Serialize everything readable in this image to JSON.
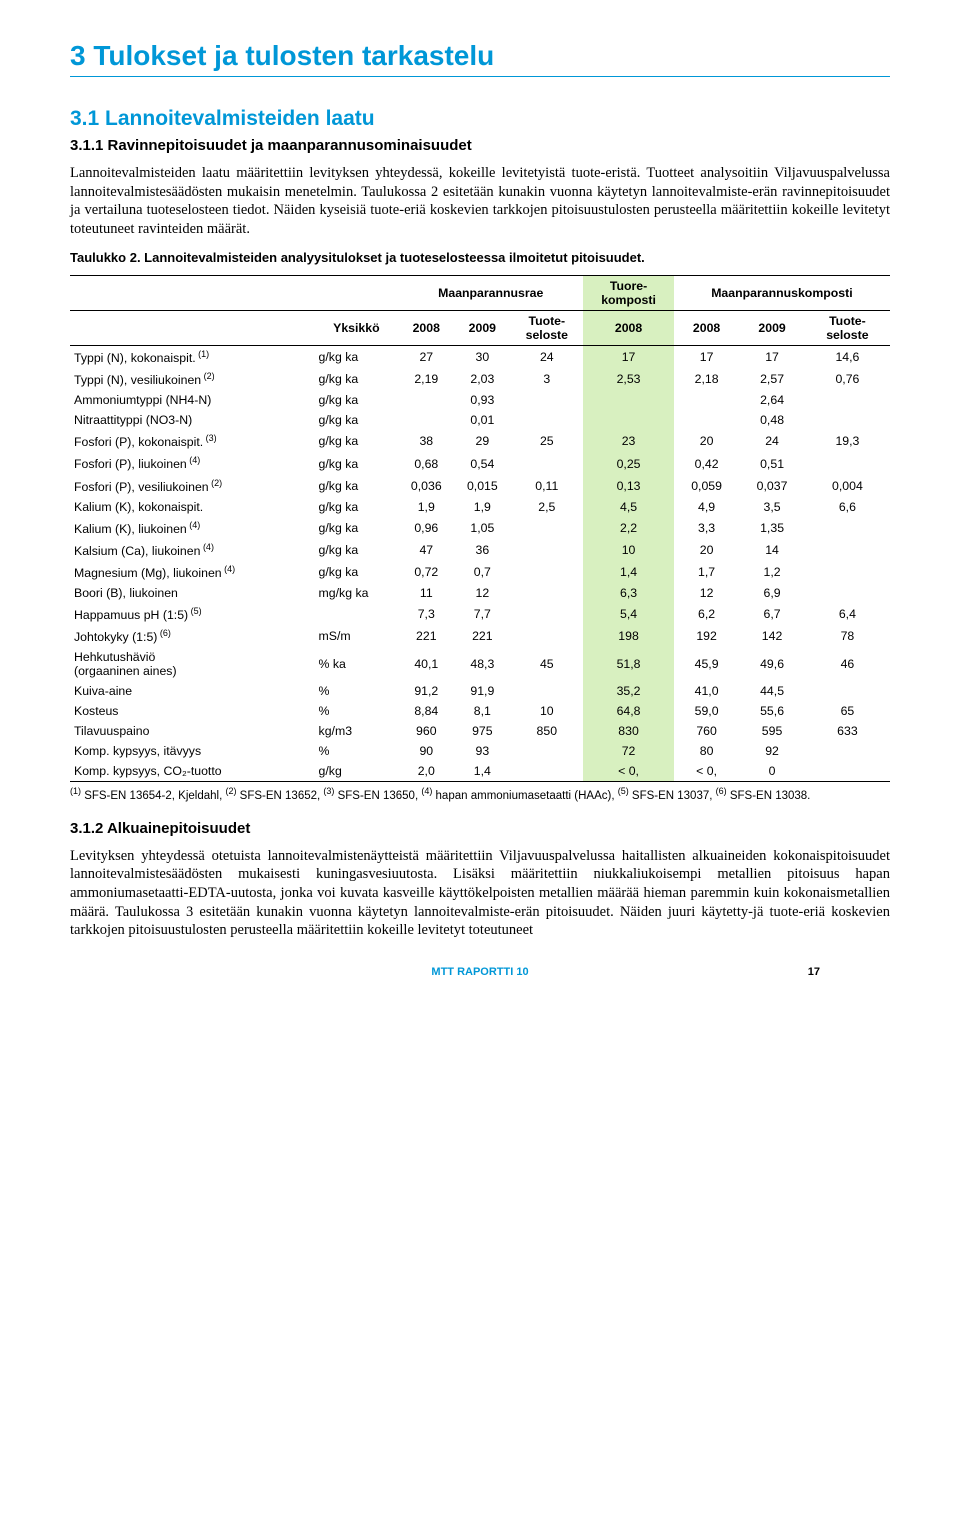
{
  "colors": {
    "accent": "#0097d7",
    "text": "#000000",
    "bg": "#ffffff",
    "hl_tuore": "#d8f0c0",
    "hl_komposti": "#fff2a8",
    "rule": "#000000"
  },
  "typography": {
    "h1_size_pt": 21,
    "h2_size_pt": 16,
    "h3_size_pt": 11,
    "body_size_pt": 11,
    "table_size_pt": 9,
    "footnote_size_pt": 8.5
  },
  "h1": "3 Tulokset ja tulosten tarkastelu",
  "h2": "3.1 Lannoitevalmisteiden laatu",
  "h3_1": "3.1.1 Ravinnepitoisuudet ja maanparannusominaisuudet",
  "para1": "Lannoitevalmisteiden laatu määritettiin levityksen yhteydessä, kokeille levitetyistä tuote-eristä. Tuotteet analysoitiin Viljavuuspalvelussa lannoitevalmistesäädösten mukaisin menetelmin. Taulukossa 2 esitetään kunakin vuonna käytetyn lannoitevalmiste-erän ravinnepitoisuudet ja vertailuna tuoteselosteen tiedot. Näiden kyseisiä tuote-eriä koskevien tarkkojen pitoisuustulosten perusteella määritettiin kokeille levitetyt toteutuneet ravinteiden määrät.",
  "table_caption": "Taulukko 2. Lannoitevalmisteiden analyysitulokset ja tuoteselosteessa ilmoitetut pitoisuudet.",
  "table": {
    "type": "table",
    "group_headers": [
      "",
      "",
      "Maanparannusrae",
      "",
      "Tuore-\nkomposti",
      "Maanparannuskomposti",
      "",
      ""
    ],
    "columns": [
      "",
      "Yksikkö",
      "2008",
      "2009",
      "Tuote-\nseloste",
      "2008",
      "2008",
      "2009",
      "Tuote-\nseloste"
    ],
    "highlight_cols": {
      "tuore_col_index": 5,
      "tuore_bg": "#d8f0c0",
      "komposti_cols": [
        6,
        7,
        8
      ],
      "komposti_bg": "#fff2a8"
    },
    "rows": [
      {
        "label": "Typpi (N), kokonaispit.",
        "sup": "(1)",
        "unit": "g/kg ka",
        "v": [
          "27",
          "30",
          "24",
          "17",
          "17",
          "17",
          "14,6"
        ]
      },
      {
        "label": "Typpi (N), vesiliukoinen",
        "sup": "(2)",
        "unit": "g/kg ka",
        "v": [
          "2,19",
          "2,03",
          "3",
          "2,53",
          "2,18",
          "2,57",
          "0,76"
        ]
      },
      {
        "label": "Ammoniumtyppi (NH4-N)",
        "sup": "",
        "unit": "g/kg ka",
        "v": [
          "",
          "0,93",
          "",
          "",
          "",
          "2,64",
          ""
        ]
      },
      {
        "label": "Nitraattityppi (NO3-N)",
        "sup": "",
        "unit": "g/kg ka",
        "v": [
          "",
          "0,01",
          "",
          "",
          "",
          "0,48",
          ""
        ]
      },
      {
        "label": "Fosfori (P), kokonaispit.",
        "sup": "(3)",
        "unit": "g/kg ka",
        "v": [
          "38",
          "29",
          "25",
          "23",
          "20",
          "24",
          "19,3"
        ]
      },
      {
        "label": "Fosfori (P), liukoinen",
        "sup": "(4)",
        "unit": "g/kg ka",
        "v": [
          "0,68",
          "0,54",
          "",
          "0,25",
          "0,42",
          "0,51",
          ""
        ]
      },
      {
        "label": "Fosfori (P), vesiliukoinen",
        "sup": "(2)",
        "unit": "g/kg ka",
        "v": [
          "0,036",
          "0,015",
          "0,11",
          "0,13",
          "0,059",
          "0,037",
          "0,004"
        ]
      },
      {
        "label": "Kalium (K), kokonaispit.",
        "sup": "",
        "unit": "g/kg ka",
        "v": [
          "1,9",
          "1,9",
          "2,5",
          "4,5",
          "4,9",
          "3,5",
          "6,6"
        ]
      },
      {
        "label": "Kalium (K), liukoinen",
        "sup": "(4)",
        "unit": "g/kg ka",
        "v": [
          "0,96",
          "1,05",
          "",
          "2,2",
          "3,3",
          "1,35",
          ""
        ]
      },
      {
        "label": "Kalsium (Ca), liukoinen",
        "sup": "(4)",
        "unit": "g/kg ka",
        "v": [
          "47",
          "36",
          "",
          "10",
          "20",
          "14",
          ""
        ]
      },
      {
        "label": "Magnesium (Mg), liukoinen",
        "sup": "(4)",
        "unit": "g/kg ka",
        "v": [
          "0,72",
          "0,7",
          "",
          "1,4",
          "1,7",
          "1,2",
          ""
        ]
      },
      {
        "label": "Boori (B), liukoinen",
        "sup": "",
        "unit": "mg/kg ka",
        "v": [
          "11",
          "12",
          "",
          "6,3",
          "12",
          "6,9",
          ""
        ]
      },
      {
        "label": "Happamuus pH (1:5)",
        "sup": "(5)",
        "unit": "",
        "v": [
          "7,3",
          "7,7",
          "",
          "5,4",
          "6,2",
          "6,7",
          "6,4"
        ]
      },
      {
        "label": "Johtokyky (1:5)",
        "sup": "(6)",
        "unit": "mS/m",
        "v": [
          "221",
          "221",
          "",
          "198",
          "192",
          "142",
          "78"
        ]
      },
      {
        "label": "Hehkutushäviö\n(orgaaninen aines)",
        "sup": "",
        "unit": "% ka",
        "v": [
          "40,1",
          "48,3",
          "45",
          "51,8",
          "45,9",
          "49,6",
          "46"
        ]
      },
      {
        "label": "Kuiva-aine",
        "sup": "",
        "unit": "%",
        "v": [
          "91,2",
          "91,9",
          "",
          "35,2",
          "41,0",
          "44,5",
          ""
        ]
      },
      {
        "label": "Kosteus",
        "sup": "",
        "unit": "%",
        "v": [
          "8,84",
          "8,1",
          "10",
          "64,8",
          "59,0",
          "55,6",
          "65"
        ]
      },
      {
        "label": "Tilavuuspaino",
        "sup": "",
        "unit": "kg/m3",
        "v": [
          "960",
          "975",
          "850",
          "830",
          "760",
          "595",
          "633"
        ]
      },
      {
        "label": "Komp. kypsyys, itävyys",
        "sup": "",
        "unit": "%",
        "v": [
          "90",
          "93",
          "",
          "72",
          "80",
          "92",
          ""
        ]
      },
      {
        "label": "Komp. kypsyys, CO₂-tuotto",
        "sup": "",
        "unit": "g/kg",
        "v": [
          "2,0",
          "1,4",
          "",
          "< 0,",
          "< 0,",
          "0",
          ""
        ]
      }
    ]
  },
  "footnote": "(1) SFS-EN 13654-2, Kjeldahl, (2) SFS-EN 13652, (3) SFS-EN 13650, (4) hapan ammoniumasetaatti (HAAc), (5) SFS-EN 13037, (6) SFS-EN 13038.",
  "h3_2": "3.1.2 Alkuainepitoisuudet",
  "para2": "Levityksen yhteydessä otetuista lannoitevalmistenäytteistä määritettiin Viljavuuspalvelussa haitallisten alkuaineiden kokonaispitoisuudet lannoitevalmistesäädösten mukaisesti kuningasvesiuutosta. Lisäksi määritettiin niukkaliukoisempi metallien pitoisuus hapan ammoniumasetaatti-EDTA-uutosta, jonka voi kuvata kasveille käyttökelpoisten metallien määrää hieman paremmin kuin kokonaismetallien määrä. Taulukossa 3 esitetään kunakin vuonna käytetyn lannoitevalmiste-erän pitoisuudet. Näiden juuri käytetty-jä tuote-eriä koskevien tarkkojen pitoisuustulosten perusteella määritettiin kokeille levitetyt toteutuneet",
  "footer_text": "MTT RAPORTTI 10",
  "page_number": "17"
}
